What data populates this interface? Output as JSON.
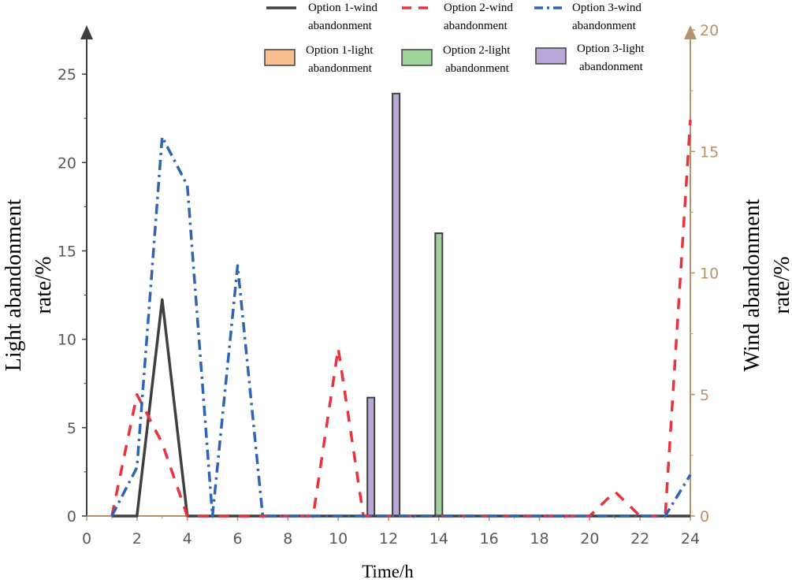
{
  "chart_data": {
    "type": "line+bar",
    "xlabel": "Time/h",
    "ylabel_left": [
      "Light abandonment",
      "rate/%"
    ],
    "ylabel_right": [
      "Wind abandonment",
      "rate/%"
    ],
    "xlim": [
      0,
      24
    ],
    "ylim_left": [
      0,
      27.5
    ],
    "ylim_right": [
      0,
      20
    ],
    "x_ticks": [
      0,
      2,
      4,
      6,
      8,
      10,
      12,
      14,
      16,
      18,
      20,
      22,
      24
    ],
    "left_ticks": [
      0,
      5,
      10,
      15,
      20,
      25
    ],
    "right_ticks": [
      0,
      5,
      10,
      15,
      20
    ],
    "colors": {
      "opt1_wind": "#3f3f3f",
      "opt2_wind": "#e8323c",
      "opt3_wind": "#2f64b4",
      "opt1_light": "#f9c08f",
      "opt2_light": "#9fd39b",
      "opt3_light": "#b8a8d8",
      "left_axis": "#3f3f3f",
      "right_axis": "#b7926b",
      "tick_text": "#595959"
    },
    "wind_series": [
      {
        "name": "Option 1-wind abandonment",
        "x": [
          1,
          2,
          3,
          4,
          24
        ],
        "y": [
          0,
          0,
          8.9,
          0,
          0
        ]
      },
      {
        "name": "Option 2-wind abandonment",
        "x": [
          1,
          2,
          3,
          4,
          5,
          6,
          7,
          8,
          9,
          10,
          11,
          12,
          13,
          14,
          15,
          16,
          17,
          18,
          19,
          20,
          21,
          22,
          23,
          24
        ],
        "y": [
          0,
          5,
          3,
          0,
          0,
          0,
          0,
          0,
          0,
          6.9,
          0,
          0,
          0,
          0,
          0,
          0,
          0,
          0,
          0,
          0,
          1,
          0,
          0,
          16.3
        ]
      },
      {
        "name": "Option 3-wind abandonment",
        "x": [
          1,
          2,
          3,
          4,
          5,
          6,
          7,
          8,
          9,
          10,
          11,
          12,
          13,
          14,
          15,
          16,
          17,
          18,
          19,
          20,
          21,
          22,
          23,
          24
        ],
        "y": [
          0,
          2,
          15.6,
          13.6,
          0,
          10.3,
          0,
          0,
          0,
          0,
          0,
          0,
          0,
          0,
          0,
          0,
          0,
          0,
          0,
          0,
          0,
          0,
          0,
          1.7
        ]
      }
    ],
    "light_series": [
      {
        "name": "Option 1-light abandonment",
        "values": []
      },
      {
        "name": "Option 2-light abandonment",
        "values": [
          {
            "x": 14,
            "y": 16
          }
        ]
      },
      {
        "name": "Option 3-light abandonment",
        "values": [
          {
            "x": 11,
            "y": 6.7
          },
          {
            "x": 12,
            "y": 23.9
          }
        ]
      }
    ],
    "legend": {
      "placement": "top",
      "lines": [
        {
          "label_lines": [
            "Option 1-wind",
            "abandonment"
          ]
        },
        {
          "label_lines": [
            "Option 2-wind",
            "abandonment"
          ]
        },
        {
          "label_lines": [
            "Option 3-wind",
            "abandonment"
          ]
        }
      ],
      "bars": [
        {
          "label_lines": [
            "Option 1-light",
            "abandonment"
          ]
        },
        {
          "label_lines": [
            "Option 2-light",
            "abandonment"
          ]
        },
        {
          "label_lines": [
            "Option 3-light",
            "abandonment"
          ]
        }
      ]
    }
  }
}
